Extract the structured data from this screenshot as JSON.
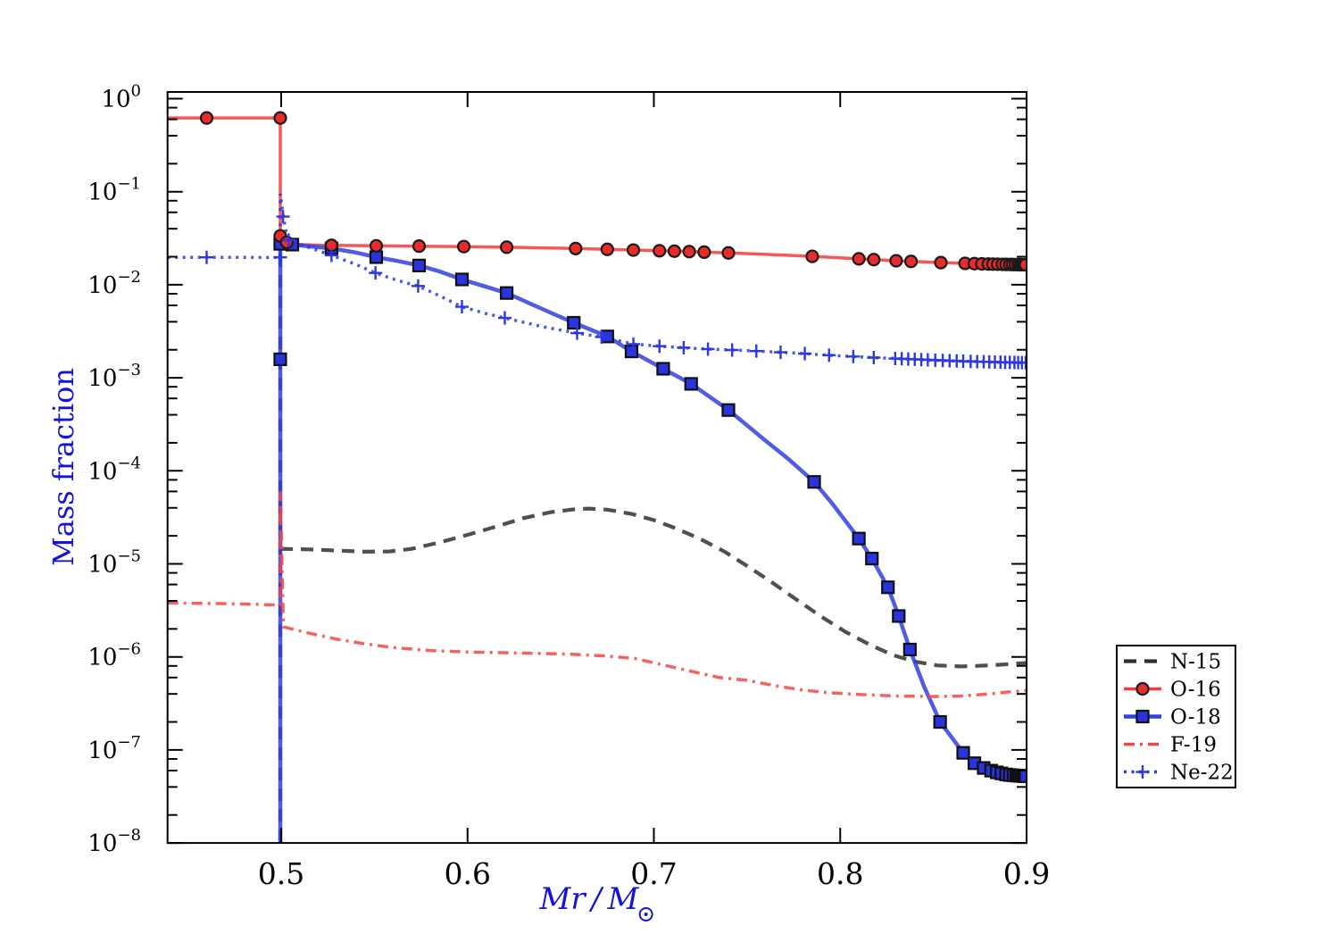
{
  "chart_data": {
    "type": "line",
    "title": "",
    "xlabel": "Mr / M☉",
    "ylabel": "Mass fraction",
    "axis_label_color": "#1414d6",
    "xlim": [
      0.439,
      0.9
    ],
    "ylim": [
      1e-08,
      1.18
    ],
    "x_ticks": [
      "0.5",
      "0.6",
      "0.7",
      "0.8",
      "0.9"
    ],
    "x_tick_values": [
      0.5,
      0.6,
      0.7,
      0.8,
      0.9
    ],
    "y_tick_exponents": [
      0,
      -1,
      -2,
      -3,
      -4,
      -5,
      -6,
      -7,
      -8
    ],
    "y_minor_subs": [
      2,
      4,
      6,
      8
    ],
    "grid": false,
    "legend_position": "outside-right-bottom",
    "series": [
      {
        "name": "N-15",
        "color": "#303030",
        "style": "dashed",
        "marker": "none",
        "width": 4.2,
        "line": [
          [
            0.4995,
            0.035
          ],
          [
            0.4995,
            1e-08
          ],
          null,
          [
            0.4995,
            1.45e-05
          ],
          [
            0.515,
            1.43e-05
          ],
          [
            0.53,
            1.39e-05
          ],
          [
            0.545,
            1.35e-05
          ],
          [
            0.558,
            1.36e-05
          ],
          [
            0.57,
            1.45e-05
          ],
          [
            0.585,
            1.7e-05
          ],
          [
            0.6,
            2.05e-05
          ],
          [
            0.615,
            2.5e-05
          ],
          [
            0.63,
            3.1e-05
          ],
          [
            0.645,
            3.6e-05
          ],
          [
            0.657,
            3.85e-05
          ],
          [
            0.665,
            3.93e-05
          ],
          [
            0.675,
            3.82e-05
          ],
          [
            0.688,
            3.45e-05
          ],
          [
            0.7,
            2.95e-05
          ],
          [
            0.712,
            2.4e-05
          ],
          [
            0.725,
            1.85e-05
          ],
          [
            0.738,
            1.35e-05
          ],
          [
            0.75,
            9.5e-06
          ],
          [
            0.763,
            6.4e-06
          ],
          [
            0.776,
            4.2e-06
          ],
          [
            0.79,
            2.7e-06
          ],
          [
            0.803,
            1.85e-06
          ],
          [
            0.816,
            1.35e-06
          ],
          [
            0.828,
            1.05e-06
          ],
          [
            0.84,
            8.9e-07
          ],
          [
            0.852,
            8.1e-07
          ],
          [
            0.865,
            7.9e-07
          ],
          [
            0.88,
            8.1e-07
          ],
          [
            0.9,
            8.6e-07
          ]
        ],
        "markers": []
      },
      {
        "name": "O-16",
        "color": "#f23c3c",
        "style": "solid",
        "marker": "circle",
        "marker_fill": "#e92b2b",
        "marker_edge": "#1a1a1a",
        "width": 3.5,
        "line": [
          [
            0.439,
            0.62
          ],
          [
            0.4995,
            0.62
          ],
          [
            0.4995,
            0.0335
          ],
          [
            0.502,
            0.029
          ],
          [
            0.506,
            0.0272
          ],
          [
            0.52,
            0.0266
          ],
          [
            0.551,
            0.0262
          ],
          [
            0.574,
            0.026
          ],
          [
            0.598,
            0.0257
          ],
          [
            0.621,
            0.0253
          ],
          [
            0.645,
            0.0248
          ],
          [
            0.658,
            0.0245
          ],
          [
            0.675,
            0.024
          ],
          [
            0.689,
            0.0236
          ],
          [
            0.703,
            0.0232
          ],
          [
            0.719,
            0.0227
          ],
          [
            0.74,
            0.022
          ],
          [
            0.76,
            0.0212
          ],
          [
            0.785,
            0.0202
          ],
          [
            0.81,
            0.019
          ],
          [
            0.83,
            0.0181
          ],
          [
            0.85,
            0.0174
          ],
          [
            0.87,
            0.0169
          ],
          [
            0.885,
            0.0166
          ],
          [
            0.9,
            0.0164
          ]
        ],
        "markers": [
          [
            0.46,
            0.62
          ],
          [
            0.4995,
            0.62
          ],
          [
            0.4995,
            0.0335
          ],
          [
            0.503
          ],
          [
            0.527
          ],
          [
            0.551
          ],
          [
            0.574
          ],
          [
            0.598
          ],
          [
            0.621
          ],
          [
            0.658
          ],
          [
            0.675
          ],
          [
            0.689
          ],
          [
            0.703
          ],
          [
            0.711
          ],
          [
            0.719
          ],
          [
            0.727
          ],
          [
            0.74
          ],
          [
            0.785
          ],
          [
            0.81
          ],
          [
            0.818
          ],
          [
            0.83
          ],
          [
            0.838
          ],
          [
            0.854
          ],
          [
            0.867
          ],
          [
            0.872
          ],
          [
            0.876
          ],
          [
            0.8795
          ],
          [
            0.882
          ],
          [
            0.8845
          ],
          [
            0.887
          ],
          [
            0.889
          ],
          [
            0.891
          ],
          [
            0.8925
          ],
          [
            0.894
          ],
          [
            0.8955
          ],
          [
            0.8965
          ],
          [
            0.8975
          ],
          [
            0.8985
          ],
          [
            0.8995
          ]
        ]
      },
      {
        "name": "O-18",
        "color": "#3340e0",
        "style": "solid",
        "marker": "square",
        "marker_fill": "#2a34dd",
        "marker_edge": "#101010",
        "width": 4.5,
        "line": [
          [
            0.4995,
            1e-08
          ],
          [
            0.4995,
            0.0275
          ],
          [
            0.506,
            0.027
          ],
          [
            0.527,
            0.0246
          ],
          [
            0.54,
            0.0222
          ],
          [
            0.551,
            0.0198
          ],
          [
            0.5625,
            0.018
          ],
          [
            0.574,
            0.0161
          ],
          [
            0.585,
            0.0139
          ],
          [
            0.597,
            0.0114
          ],
          [
            0.61,
            0.0095
          ],
          [
            0.621,
            0.00815
          ],
          [
            0.64,
            0.0055
          ],
          [
            0.657,
            0.0039
          ],
          [
            0.675,
            0.00278
          ],
          [
            0.688,
            0.00192
          ],
          [
            0.705,
            0.00125
          ],
          [
            0.72,
            0.00086
          ],
          [
            0.74,
            0.00045
          ],
          [
            0.76,
            0.00021
          ],
          [
            0.772,
            0.000135
          ],
          [
            0.786,
            7.6e-05
          ],
          [
            0.7955,
            4.5e-05
          ],
          [
            0.81,
            1.87e-05
          ],
          [
            0.817,
            1.14e-05
          ],
          [
            0.8256,
            5.6e-06
          ],
          [
            0.8314,
            2.75e-06
          ],
          [
            0.8374,
            1.2e-06
          ],
          [
            0.845,
            4.8e-07
          ],
          [
            0.8536,
            2e-07
          ],
          [
            0.86,
            1.35e-07
          ],
          [
            0.866,
            9.3e-08
          ],
          [
            0.872,
            7.2e-08
          ],
          [
            0.877,
            6.4e-08
          ],
          [
            0.883,
            5.8e-08
          ],
          [
            0.89,
            5.4e-08
          ],
          [
            0.9,
            5.2e-08
          ]
        ],
        "markers": [
          [
            0.4995,
            0.00158
          ],
          [
            0.4995,
            0.0275
          ],
          [
            0.506
          ],
          [
            0.527
          ],
          [
            0.551
          ],
          [
            0.574
          ],
          [
            0.597
          ],
          [
            0.621
          ],
          [
            0.657
          ],
          [
            0.675
          ],
          [
            0.688
          ],
          [
            0.705
          ],
          [
            0.72
          ],
          [
            0.74
          ],
          [
            0.786
          ],
          [
            0.81
          ],
          [
            0.817
          ],
          [
            0.8256
          ],
          [
            0.8314
          ],
          [
            0.8374
          ],
          [
            0.8536
          ],
          [
            0.866
          ],
          [
            0.872
          ],
          [
            0.877
          ],
          [
            0.881
          ],
          [
            0.884
          ],
          [
            0.8865
          ],
          [
            0.889
          ],
          [
            0.891
          ],
          [
            0.893
          ],
          [
            0.8945
          ],
          [
            0.8955
          ],
          [
            0.8965
          ],
          [
            0.8975
          ],
          [
            0.8985
          ],
          [
            0.8995
          ]
        ]
      },
      {
        "name": "F-19",
        "color": "#f24747",
        "style": "dashdot",
        "marker": "none",
        "width": 3.5,
        "line": [
          [
            0.439,
            3.8e-06
          ],
          [
            0.465,
            3.75e-06
          ],
          [
            0.485,
            3.68e-06
          ],
          [
            0.4995,
            3.6e-06
          ],
          [
            0.4995,
            6e-05
          ],
          [
            0.5012,
            2.1e-06
          ],
          [
            0.515,
            1.8e-06
          ],
          [
            0.53,
            1.55e-06
          ],
          [
            0.545,
            1.38e-06
          ],
          [
            0.56,
            1.26e-06
          ],
          [
            0.58,
            1.17e-06
          ],
          [
            0.6,
            1.13e-06
          ],
          [
            0.63,
            1.1e-06
          ],
          [
            0.655,
            1.07e-06
          ],
          [
            0.675,
            1.02e-06
          ],
          [
            0.69,
            9.6e-07
          ],
          [
            0.705,
            8.2e-07
          ],
          [
            0.72,
            7e-07
          ],
          [
            0.735,
            6e-07
          ],
          [
            0.75,
            5.6e-07
          ],
          [
            0.765,
            4.9e-07
          ],
          [
            0.78,
            4.4e-07
          ],
          [
            0.795,
            4.1e-07
          ],
          [
            0.81,
            3.95e-07
          ],
          [
            0.83,
            3.8e-07
          ],
          [
            0.85,
            3.75e-07
          ],
          [
            0.865,
            3.8e-07
          ],
          [
            0.88,
            4e-07
          ],
          [
            0.89,
            4.2e-07
          ],
          [
            0.9,
            4.35e-07
          ]
        ],
        "markers": []
      },
      {
        "name": "Ne-22",
        "color": "#2c39e0",
        "style": "dotted",
        "marker": "plus",
        "marker_fill": "#2c39e0",
        "marker_edge": "#2c39e0",
        "width": 3.5,
        "line": [
          [
            0.439,
            0.0197
          ],
          [
            0.47,
            0.0197
          ],
          [
            0.4995,
            0.0196
          ],
          [
            0.4995,
            0.095
          ],
          [
            0.5012,
            0.054
          ],
          [
            0.503,
            0.0335
          ],
          [
            0.508,
            0.0282
          ],
          [
            0.515,
            0.0252
          ],
          [
            0.527,
            0.0207
          ],
          [
            0.54,
            0.0166
          ],
          [
            0.5506,
            0.0134
          ],
          [
            0.562,
            0.0112
          ],
          [
            0.5735,
            0.0097
          ],
          [
            0.585,
            0.0076
          ],
          [
            0.597,
            0.0058
          ],
          [
            0.61,
            0.0049
          ],
          [
            0.62,
            0.0044
          ],
          [
            0.64,
            0.00355
          ],
          [
            0.6588,
            0.00302
          ],
          [
            0.675,
            0.00268
          ],
          [
            0.689,
            0.0023
          ],
          [
            0.705,
            0.00217
          ],
          [
            0.725,
            0.00205
          ],
          [
            0.75,
            0.00196
          ],
          [
            0.775,
            0.00185
          ],
          [
            0.8,
            0.00172
          ],
          [
            0.82,
            0.00164
          ],
          [
            0.84,
            0.00158
          ],
          [
            0.86,
            0.00152
          ],
          [
            0.88,
            0.00148
          ],
          [
            0.9,
            0.00145
          ]
        ],
        "markers": [
          [
            0.46,
            0.0197
          ],
          [
            0.4995,
            0.0197
          ],
          [
            0.501,
            0.054
          ],
          [
            0.504,
            0.0302
          ],
          [
            0.527
          ],
          [
            0.5506
          ],
          [
            0.5735
          ],
          [
            0.597
          ],
          [
            0.62
          ],
          [
            0.6588
          ],
          [
            0.672
          ],
          [
            0.689
          ],
          [
            0.703
          ],
          [
            0.716
          ],
          [
            0.729
          ],
          [
            0.742
          ],
          [
            0.755
          ],
          [
            0.768
          ],
          [
            0.781
          ],
          [
            0.794
          ],
          [
            0.807
          ],
          [
            0.818
          ],
          [
            0.8295
          ],
          [
            0.833
          ],
          [
            0.8365
          ],
          [
            0.84
          ],
          [
            0.8435
          ],
          [
            0.847
          ],
          [
            0.851
          ],
          [
            0.855
          ],
          [
            0.8587
          ],
          [
            0.8625
          ],
          [
            0.866
          ],
          [
            0.87
          ],
          [
            0.8735
          ],
          [
            0.877
          ],
          [
            0.88
          ],
          [
            0.883
          ],
          [
            0.886
          ],
          [
            0.8885
          ],
          [
            0.891
          ],
          [
            0.8935
          ],
          [
            0.8955
          ],
          [
            0.8975
          ],
          [
            0.8995
          ]
        ]
      }
    ],
    "legend": {
      "entries": [
        "N-15",
        "O-16",
        "O-18",
        "F-19",
        "Ne-22"
      ]
    }
  }
}
